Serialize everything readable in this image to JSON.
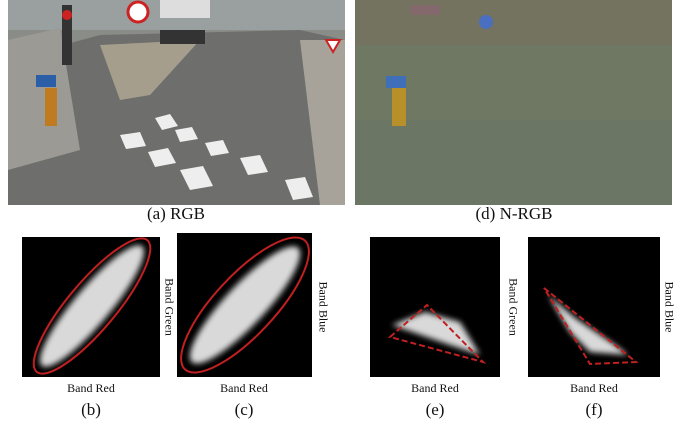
{
  "top_captions": [
    "(a) RGB",
    "(d) N-RGB"
  ],
  "plots": [
    {
      "caption": "(b)",
      "x_label": "Band Red",
      "y_label": "Band Green"
    },
    {
      "caption": "(c)",
      "x_label": "Band Red",
      "y_label": "Band Blue"
    },
    {
      "caption": "(e)",
      "x_label": "Band Red",
      "y_label": "Band  Green"
    },
    {
      "caption": "(f)",
      "x_label": "Band Red",
      "y_label": "Band Blue"
    }
  ]
}
